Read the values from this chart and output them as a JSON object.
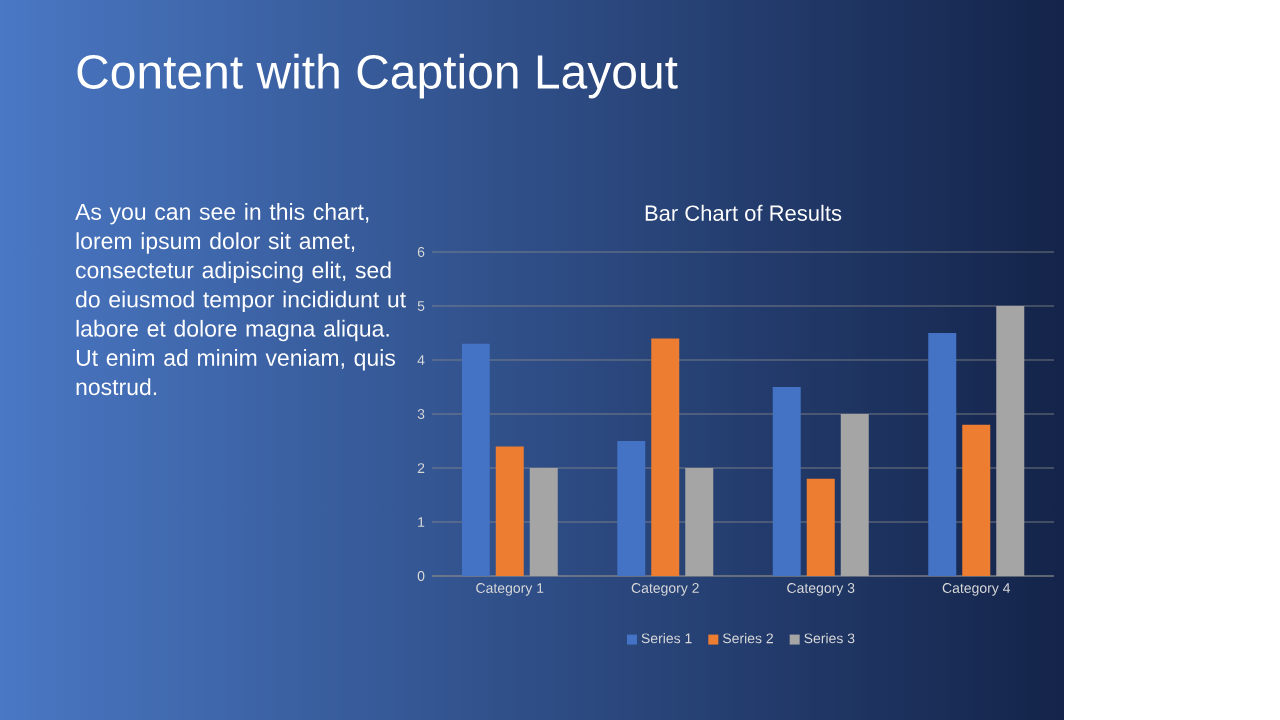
{
  "chart_data": {
    "type": "bar",
    "title": "Bar Chart of Results",
    "annotations": [
      "Content with Caption Layout",
      "As you can see in this chart, lorem ipsum dolor sit amet, consectetur adipiscing elit, sed do eiusmod tempor incididunt ut labore et dolore magna aliqua. Ut enim ad minim veniam, quis nostrud."
    ],
    "categories": [
      "Category 1",
      "Category 2",
      "Category 3",
      "Category 4"
    ],
    "series": [
      {
        "name": "Series 1",
        "color": "#4472c4",
        "values": [
          4.3,
          2.5,
          3.5,
          4.5
        ]
      },
      {
        "name": "Series 2",
        "color": "#ed7d31",
        "values": [
          2.4,
          4.4,
          1.8,
          2.8
        ]
      },
      {
        "name": "Series 3",
        "color": "#a5a5a5",
        "values": [
          2,
          2,
          3,
          5
        ]
      }
    ],
    "ylim": [
      0,
      6
    ],
    "yticks": [
      0,
      1,
      2,
      3,
      4,
      5,
      6
    ],
    "grid": "y",
    "legend": "bottom"
  }
}
